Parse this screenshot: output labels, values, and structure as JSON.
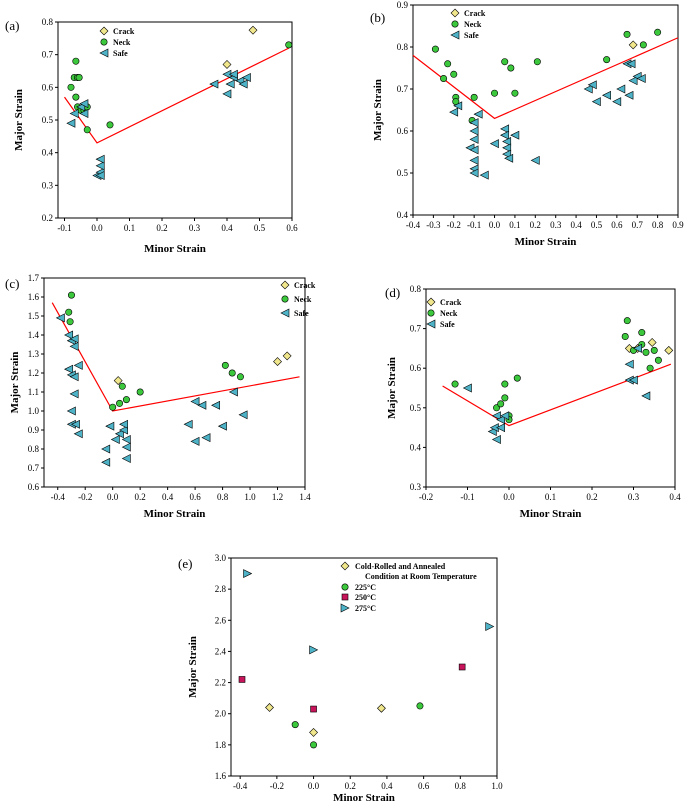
{
  "colors": {
    "crack": "#f0e68c",
    "neck": "#3cc83c",
    "safe": "#4fb3c7",
    "magenta": "#c8145a",
    "outline": "#000000",
    "limit": "#ff0000"
  },
  "chart_data": [
    {
      "panel": "(a)",
      "type": "scatter",
      "xlabel": "Minor Strain",
      "ylabel": "Major Strain",
      "xlim": [
        -0.12,
        0.6
      ],
      "ylim": [
        0.2,
        0.8
      ],
      "xticks": [
        "-0.1",
        "0.0",
        "0.1",
        "0.2",
        "0.3",
        "0.4",
        "0.5",
        "0.6"
      ],
      "yticks": [
        "0.2",
        "0.3",
        "0.4",
        "0.5",
        "0.6",
        "0.7",
        "0.8"
      ],
      "xtick_vals": [
        -0.1,
        0,
        0.1,
        0.2,
        0.3,
        0.4,
        0.5,
        0.6
      ],
      "ytick_vals": [
        0.2,
        0.3,
        0.4,
        0.5,
        0.6,
        0.7,
        0.8
      ],
      "legend": [
        "Crack",
        "Neck",
        "Safe"
      ],
      "series": [
        {
          "name": "Crack",
          "marker": "diamond",
          "points": [
            [
              0.4,
              0.67
            ],
            [
              0.48,
              0.775
            ]
          ]
        },
        {
          "name": "Neck",
          "marker": "circle",
          "points": [
            [
              -0.08,
              0.6
            ],
            [
              -0.07,
              0.63
            ],
            [
              -0.065,
              0.68
            ],
            [
              -0.06,
              0.63
            ],
            [
              -0.055,
              0.63
            ],
            [
              -0.065,
              0.57
            ],
            [
              -0.06,
              0.54
            ],
            [
              -0.05,
              0.53
            ],
            [
              -0.04,
              0.53
            ],
            [
              -0.03,
              0.54
            ],
            [
              -0.03,
              0.47
            ],
            [
              0.04,
              0.485
            ],
            [
              0.59,
              0.73
            ]
          ]
        },
        {
          "name": "Safe",
          "marker": "triangle-left",
          "points": [
            [
              -0.08,
              0.49
            ],
            [
              -0.07,
              0.52
            ],
            [
              -0.05,
              0.54
            ],
            [
              -0.04,
              0.55
            ],
            [
              -0.04,
              0.52
            ],
            [
              0.0,
              0.33
            ],
            [
              0.01,
              0.34
            ],
            [
              0.01,
              0.36
            ],
            [
              0.01,
              0.38
            ],
            [
              0.01,
              0.33
            ],
            [
              0.36,
              0.61
            ],
            [
              0.4,
              0.58
            ],
            [
              0.4,
              0.64
            ],
            [
              0.41,
              0.61
            ],
            [
              0.42,
              0.63
            ],
            [
              0.44,
              0.62
            ],
            [
              0.45,
              0.61
            ],
            [
              0.46,
              0.63
            ],
            [
              0.42,
              0.64
            ]
          ]
        }
      ],
      "flc": [
        [
          -0.1,
          0.57
        ],
        [
          0.0,
          0.43
        ],
        [
          0.59,
          0.72
        ]
      ]
    },
    {
      "panel": "(b)",
      "type": "scatter",
      "xlabel": "Minor Strain",
      "ylabel": "Major Strain",
      "xlim": [
        -0.4,
        0.9
      ],
      "ylim": [
        0.4,
        0.9
      ],
      "xticks": [
        "-0.4",
        "-0.3",
        "-0.2",
        "-0.1",
        "0.0",
        "0.1",
        "0.2",
        "0.3",
        "0.4",
        "0.5",
        "0.6",
        "0.7",
        "0.8",
        "0.9"
      ],
      "yticks": [
        "0.4",
        "0.5",
        "0.6",
        "0.7",
        "0.8",
        "0.9"
      ],
      "xtick_vals": [
        -0.4,
        -0.3,
        -0.2,
        -0.1,
        0,
        0.1,
        0.2,
        0.3,
        0.4,
        0.5,
        0.6,
        0.7,
        0.8,
        0.9
      ],
      "ytick_vals": [
        0.4,
        0.5,
        0.6,
        0.7,
        0.8,
        0.9
      ],
      "legend": [
        "Crack",
        "Neck",
        "Safe"
      ],
      "series": [
        {
          "name": "Crack",
          "marker": "diamond",
          "points": [
            [
              0.68,
              0.805
            ]
          ]
        },
        {
          "name": "Neck",
          "marker": "circle",
          "points": [
            [
              -0.29,
              0.795
            ],
            [
              -0.25,
              0.725
            ],
            [
              -0.23,
              0.76
            ],
            [
              -0.2,
              0.735
            ],
            [
              -0.19,
              0.68
            ],
            [
              -0.19,
              0.67
            ],
            [
              -0.1,
              0.68
            ],
            [
              -0.11,
              0.625
            ],
            [
              0.0,
              0.69
            ],
            [
              0.05,
              0.765
            ],
            [
              0.08,
              0.75
            ],
            [
              0.1,
              0.69
            ],
            [
              0.21,
              0.765
            ],
            [
              0.55,
              0.77
            ],
            [
              0.65,
              0.83
            ],
            [
              0.73,
              0.805
            ],
            [
              0.8,
              0.835
            ]
          ]
        },
        {
          "name": "Safe",
          "marker": "triangle-left",
          "points": [
            [
              -0.2,
              0.645
            ],
            [
              -0.18,
              0.66
            ],
            [
              -0.08,
              0.64
            ],
            [
              -0.1,
              0.62
            ],
            [
              -0.1,
              0.6
            ],
            [
              -0.1,
              0.58
            ],
            [
              -0.12,
              0.56
            ],
            [
              -0.1,
              0.555
            ],
            [
              -0.1,
              0.53
            ],
            [
              -0.1,
              0.51
            ],
            [
              -0.1,
              0.5
            ],
            [
              -0.05,
              0.495
            ],
            [
              0.0,
              0.57
            ],
            [
              0.05,
              0.605
            ],
            [
              0.05,
              0.59
            ],
            [
              0.06,
              0.575
            ],
            [
              0.06,
              0.56
            ],
            [
              0.06,
              0.545
            ],
            [
              0.07,
              0.535
            ],
            [
              0.1,
              0.59
            ],
            [
              0.2,
              0.53
            ],
            [
              0.46,
              0.7
            ],
            [
              0.48,
              0.71
            ],
            [
              0.5,
              0.67
            ],
            [
              0.55,
              0.685
            ],
            [
              0.6,
              0.67
            ],
            [
              0.62,
              0.7
            ],
            [
              0.65,
              0.76
            ],
            [
              0.67,
              0.76
            ],
            [
              0.68,
              0.72
            ],
            [
              0.7,
              0.73
            ],
            [
              0.72,
              0.725
            ],
            [
              0.66,
              0.685
            ]
          ]
        }
      ],
      "flc": [
        [
          -0.4,
          0.78
        ],
        [
          0.0,
          0.63
        ],
        [
          0.9,
          0.822
        ]
      ]
    },
    {
      "panel": "(c)",
      "type": "scatter",
      "xlabel": "Minor Strain",
      "ylabel": "Major Strain",
      "xlim": [
        -0.5,
        1.4
      ],
      "ylim": [
        0.6,
        1.7
      ],
      "xticks": [
        "-0.4",
        "-0.2",
        "0.0",
        "0.2",
        "0.4",
        "0.6",
        "0.8",
        "1.0",
        "1.2",
        "1.4"
      ],
      "yticks": [
        "0.6",
        "0.7",
        "0.8",
        "0.9",
        "1.0",
        "1.1",
        "1.2",
        "1.3",
        "1.4",
        "1.5",
        "1.6",
        "1.7"
      ],
      "xtick_vals": [
        -0.4,
        -0.2,
        0,
        0.2,
        0.4,
        0.6,
        0.8,
        1.0,
        1.2,
        1.4
      ],
      "ytick_vals": [
        0.6,
        0.7,
        0.8,
        0.9,
        1.0,
        1.1,
        1.2,
        1.3,
        1.4,
        1.5,
        1.6,
        1.7
      ],
      "legend": [
        "Crack",
        "Neck",
        "Safe"
      ],
      "series": [
        {
          "name": "Crack",
          "marker": "diamond",
          "points": [
            [
              0.04,
              1.16
            ],
            [
              1.2,
              1.26
            ],
            [
              1.27,
              1.29
            ]
          ]
        },
        {
          "name": "Neck",
          "marker": "circle",
          "points": [
            [
              -0.32,
              1.52
            ],
            [
              -0.3,
              1.61
            ],
            [
              -0.31,
              1.47
            ],
            [
              0.0,
              1.02
            ],
            [
              0.05,
              1.04
            ],
            [
              0.07,
              1.13
            ],
            [
              0.1,
              1.06
            ],
            [
              0.2,
              1.1
            ],
            [
              0.82,
              1.24
            ],
            [
              0.87,
              1.2
            ],
            [
              0.93,
              1.18
            ]
          ]
        },
        {
          "name": "Safe",
          "marker": "triangle-left",
          "points": [
            [
              -0.38,
              1.49
            ],
            [
              -0.32,
              1.4
            ],
            [
              -0.3,
              1.37
            ],
            [
              -0.28,
              1.38
            ],
            [
              -0.28,
              1.34
            ],
            [
              -0.32,
              1.22
            ],
            [
              -0.3,
              1.19
            ],
            [
              -0.28,
              1.18
            ],
            [
              -0.25,
              1.24
            ],
            [
              -0.3,
              1.0
            ],
            [
              -0.3,
              0.93
            ],
            [
              -0.27,
              0.93
            ],
            [
              -0.25,
              0.88
            ],
            [
              -0.28,
              1.09
            ],
            [
              -0.05,
              0.73
            ],
            [
              -0.05,
              0.8
            ],
            [
              -0.02,
              0.92
            ],
            [
              0.02,
              0.85
            ],
            [
              0.05,
              0.88
            ],
            [
              0.08,
              0.9
            ],
            [
              0.08,
              0.93
            ],
            [
              0.1,
              0.85
            ],
            [
              0.1,
              0.81
            ],
            [
              0.1,
              0.75
            ],
            [
              0.55,
              0.93
            ],
            [
              0.6,
              0.84
            ],
            [
              0.6,
              1.05
            ],
            [
              0.65,
              1.03
            ],
            [
              0.68,
              0.86
            ],
            [
              0.75,
              1.03
            ],
            [
              0.8,
              0.92
            ],
            [
              0.88,
              1.1
            ],
            [
              0.95,
              0.98
            ]
          ]
        }
      ],
      "flc": [
        [
          -0.44,
          1.57
        ],
        [
          0.0,
          1.0
        ],
        [
          1.36,
          1.18
        ]
      ]
    },
    {
      "panel": "(d)",
      "type": "scatter",
      "xlabel": "Minor Strain",
      "ylabel": "Major Strain",
      "xlim": [
        -0.2,
        0.4
      ],
      "ylim": [
        0.3,
        0.8
      ],
      "xticks": [
        "-0.2",
        "-0.1",
        "0.0",
        "0.1",
        "0.2",
        "0.3",
        "0.4"
      ],
      "yticks": [
        "0.3",
        "0.4",
        "0.5",
        "0.6",
        "0.7",
        "0.8"
      ],
      "xtick_vals": [
        -0.2,
        -0.1,
        0,
        0.1,
        0.2,
        0.3,
        0.4
      ],
      "ytick_vals": [
        0.3,
        0.4,
        0.5,
        0.6,
        0.7,
        0.8
      ],
      "legend": [
        "Crack",
        "Neck",
        "Safe"
      ],
      "series": [
        {
          "name": "Crack",
          "marker": "diamond",
          "points": [
            [
              0.29,
              0.65
            ],
            [
              0.31,
              0.65
            ],
            [
              0.345,
              0.665
            ],
            [
              0.385,
              0.645
            ]
          ]
        },
        {
          "name": "Neck",
          "marker": "circle",
          "points": [
            [
              -0.13,
              0.56
            ],
            [
              -0.03,
              0.5
            ],
            [
              -0.02,
              0.51
            ],
            [
              -0.01,
              0.525
            ],
            [
              -0.01,
              0.56
            ],
            [
              0.0,
              0.48
            ],
            [
              0.0,
              0.47
            ],
            [
              0.02,
              0.575
            ],
            [
              0.28,
              0.68
            ],
            [
              0.285,
              0.72
            ],
            [
              0.3,
              0.645
            ],
            [
              0.32,
              0.66
            ],
            [
              0.32,
              0.69
            ],
            [
              0.33,
              0.64
            ],
            [
              0.34,
              0.6
            ],
            [
              0.35,
              0.645
            ],
            [
              0.36,
              0.62
            ]
          ]
        },
        {
          "name": "Safe",
          "marker": "triangle-left",
          "points": [
            [
              -0.1,
              0.55
            ],
            [
              -0.04,
              0.44
            ],
            [
              -0.035,
              0.45
            ],
            [
              -0.03,
              0.48
            ],
            [
              -0.03,
              0.42
            ],
            [
              -0.02,
              0.45
            ],
            [
              -0.02,
              0.47
            ],
            [
              -0.01,
              0.48
            ],
            [
              0.29,
              0.57
            ],
            [
              0.3,
              0.57
            ],
            [
              0.29,
              0.61
            ],
            [
              0.31,
              0.65
            ],
            [
              0.33,
              0.53
            ]
          ]
        }
      ],
      "flc": [
        [
          -0.16,
          0.555
        ],
        [
          0.0,
          0.455
        ],
        [
          0.39,
          0.61
        ]
      ]
    },
    {
      "panel": "(e)",
      "type": "scatter",
      "xlabel": "Minor Strain",
      "ylabel": "Major Strain",
      "xlim": [
        -0.45,
        1.0
      ],
      "ylim": [
        1.6,
        3.0
      ],
      "xticks": [
        "-0.4",
        "-0.2",
        "0.0",
        "0.2",
        "0.4",
        "0.6",
        "0.8",
        "1.0"
      ],
      "yticks": [
        "1.6",
        "1.8",
        "2.0",
        "2.2",
        "2.4",
        "2.6",
        "2.8",
        "3.0"
      ],
      "xtick_vals": [
        -0.4,
        -0.2,
        0,
        0.2,
        0.4,
        0.6,
        0.8,
        1.0
      ],
      "ytick_vals": [
        1.6,
        1.8,
        2.0,
        2.2,
        2.4,
        2.6,
        2.8,
        3.0
      ],
      "legend": [
        "Cold-Rolled and Annealed",
        "Condition at Room Temperature",
        "225°C",
        "250°C",
        "275°C"
      ],
      "series": [
        {
          "name": "Cold-Rolled and Annealed Condition at Room Temperature",
          "marker": "diamond",
          "points": [
            [
              -0.24,
              2.04
            ],
            [
              0.0,
              1.88
            ],
            [
              0.37,
              2.035
            ]
          ]
        },
        {
          "name": "225°C",
          "marker": "circle",
          "points": [
            [
              -0.1,
              1.93
            ],
            [
              0.0,
              1.8
            ],
            [
              0.58,
              2.05
            ]
          ]
        },
        {
          "name": "250°C",
          "marker": "square",
          "points": [
            [
              -0.39,
              2.22
            ],
            [
              0.0,
              2.03
            ],
            [
              0.81,
              2.3
            ]
          ]
        },
        {
          "name": "275°C",
          "marker": "triangle-right",
          "points": [
            [
              -0.36,
              2.9
            ],
            [
              0.0,
              2.41
            ],
            [
              0.96,
              2.56
            ]
          ]
        }
      ],
      "flc": []
    }
  ]
}
